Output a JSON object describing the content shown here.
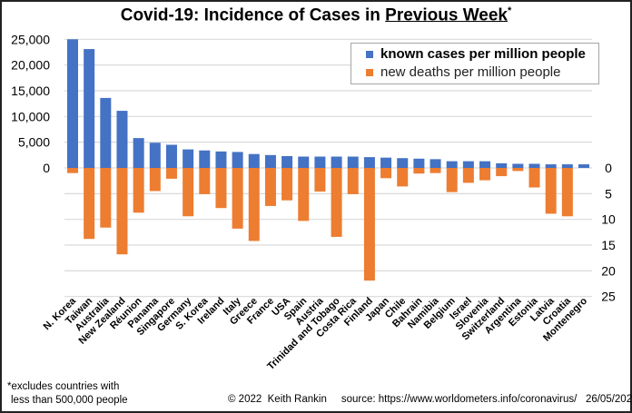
{
  "title": {
    "prefix": "Covid-19: Incidence of Cases in ",
    "underlined": "Previous Week",
    "suffix": "*"
  },
  "legend": {
    "cases_label": "known cases per million people",
    "deaths_label": "new deaths per million people"
  },
  "footnote": {
    "line1": "*excludes countries with",
    "line2": "less than 500,000 people"
  },
  "credits": {
    "copyright": "© 2022  Keith Rankin",
    "source": "source: https://www.worldometers.info/coronavirus/",
    "date": "26/05/2022"
  },
  "colors": {
    "cases": "#4472C4",
    "deaths": "#ED7D31",
    "grid": "#d9d9d9"
  },
  "chart_data": {
    "type": "bar",
    "title": "Covid-19: Incidence of Cases in Previous Week*",
    "xlabel": "",
    "categories": [
      "N. Korea",
      "Taiwan",
      "Australia",
      "New Zealand",
      "Réunion",
      "Panama",
      "Singapore",
      "Germany",
      "S. Korea",
      "Ireland",
      "Italy",
      "Greece",
      "France",
      "USA",
      "Spain",
      "Austria",
      "Trinidad and Tobago",
      "Costa Rica",
      "Finland",
      "Japan",
      "Chile",
      "Bahrain",
      "Namibia",
      "Belgium",
      "Israel",
      "Slovenia",
      "Switzerland",
      "Argentina",
      "Estonia",
      "Latvia",
      "Croatia",
      "Montenegro"
    ],
    "series": [
      {
        "name": "known cases per million people",
        "axis": "left",
        "direction": "up",
        "values": [
          25000,
          23100,
          13600,
          11100,
          5800,
          4900,
          4500,
          3600,
          3400,
          3200,
          3100,
          2700,
          2500,
          2300,
          2200,
          2200,
          2200,
          2200,
          2100,
          2000,
          1900,
          1800,
          1700,
          1300,
          1300,
          1300,
          900,
          800,
          800,
          700,
          700,
          700
        ]
      },
      {
        "name": "new deaths per million people",
        "axis": "right",
        "direction": "down",
        "values": [
          1.0,
          13.8,
          11.6,
          16.8,
          8.7,
          4.5,
          2.1,
          9.4,
          5.1,
          7.8,
          11.8,
          14.2,
          7.4,
          6.3,
          10.3,
          4.6,
          13.4,
          5.1,
          21.9,
          2.0,
          3.6,
          1.1,
          1.0,
          4.7,
          2.9,
          2.4,
          1.6,
          0.6,
          3.8,
          8.9,
          9.4,
          0.0
        ]
      }
    ],
    "left_axis": {
      "ticks": [
        "25,000",
        "20,000",
        "15,000",
        "10,000",
        "5,000",
        "0"
      ],
      "tick_values": [
        25000,
        20000,
        15000,
        10000,
        5000,
        0
      ],
      "range": [
        0,
        25000
      ]
    },
    "right_axis": {
      "ticks": [
        "0",
        "5",
        "10",
        "15",
        "20",
        "25"
      ],
      "tick_values": [
        0,
        5,
        10,
        15,
        20,
        25
      ],
      "range": [
        0,
        25
      ],
      "inverted": true
    },
    "grid": true,
    "legend_position": "top-right"
  }
}
